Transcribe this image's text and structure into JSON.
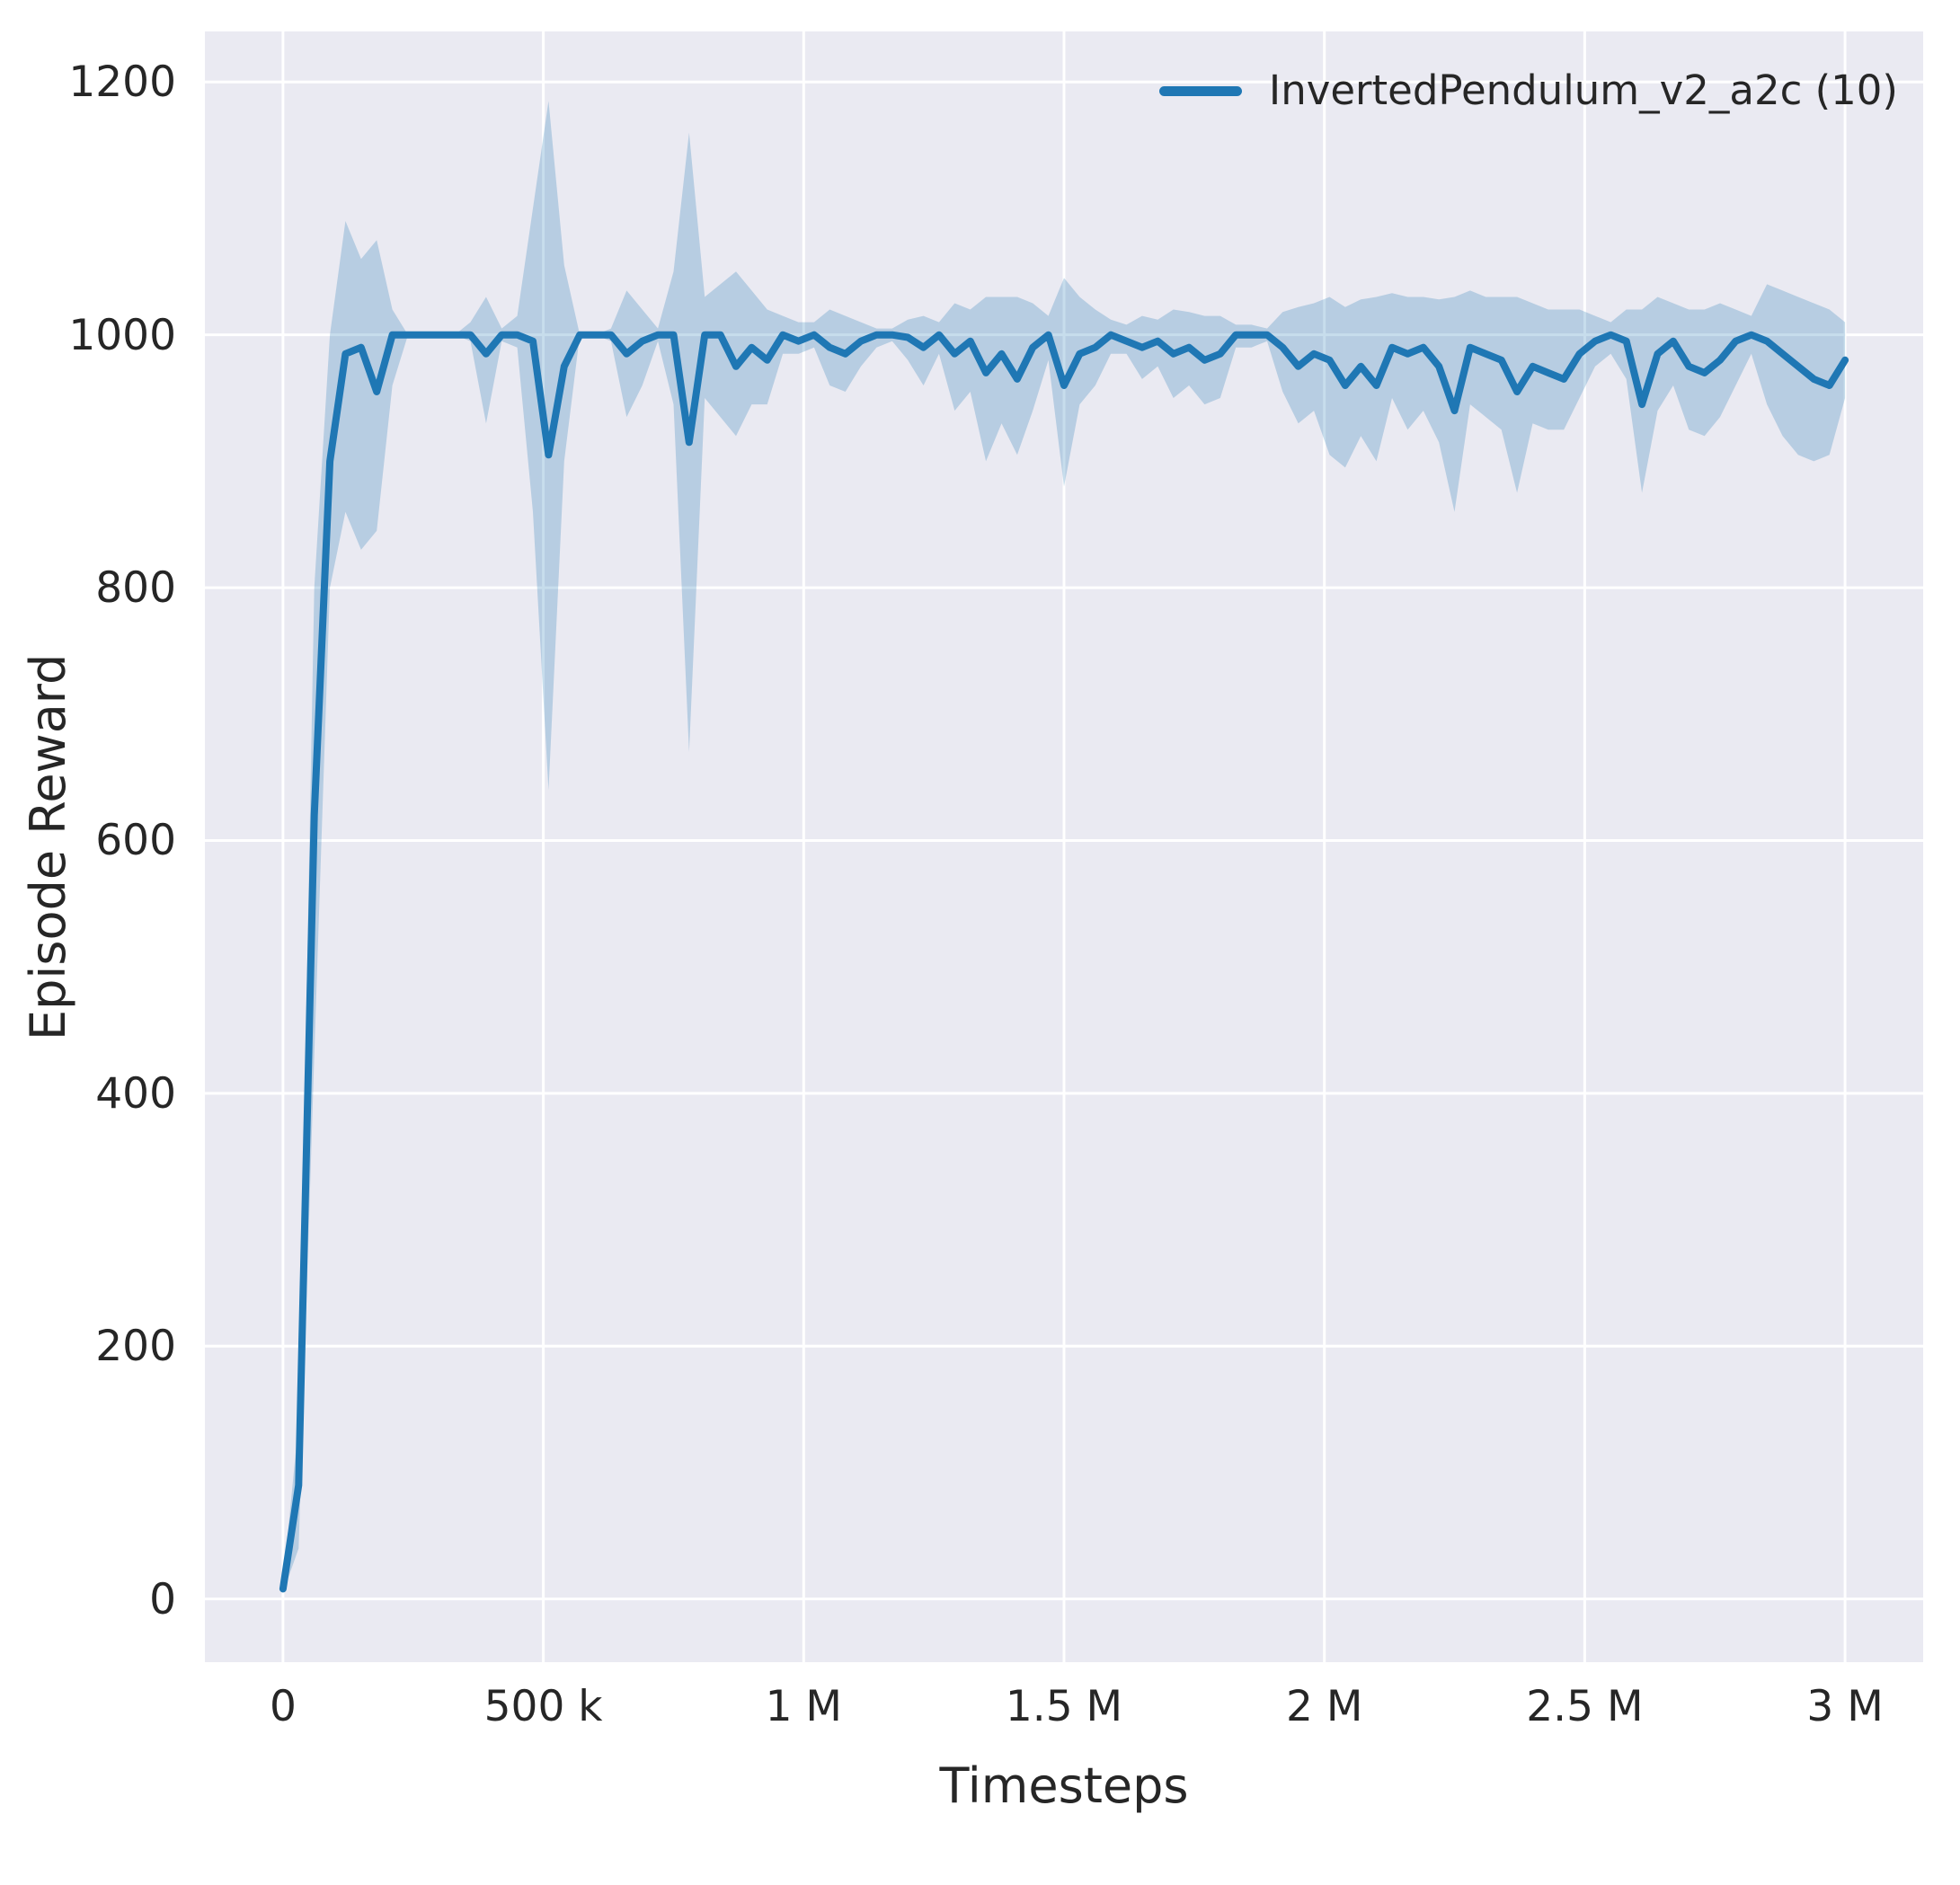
{
  "chart_data": {
    "type": "line",
    "title": "",
    "xlabel": "Timesteps",
    "ylabel": "Episode Reward",
    "grid": true,
    "legend_position": "upper right",
    "background": "#eaeaf2",
    "grid_color": "#ffffff",
    "xlim": [
      -150000,
      3150000
    ],
    "ylim": [
      -50,
      1240
    ],
    "x_ticks": {
      "values": [
        0,
        500000,
        1000000,
        1500000,
        2000000,
        2500000,
        3000000
      ],
      "labels": [
        "0",
        "500 k",
        "1 M",
        "1.5 M",
        "2 M",
        "2.5 M",
        "3 M"
      ]
    },
    "y_ticks": {
      "values": [
        0,
        200,
        400,
        600,
        800,
        1000,
        1200
      ],
      "labels": [
        "0",
        "200",
        "400",
        "600",
        "800",
        "1000",
        "1200"
      ]
    },
    "series": [
      {
        "name": "InvertedPendulum_v2_a2c (10)",
        "color": "#1f77b4",
        "band_opacity": 0.25,
        "x": [
          0,
          30000,
          60000,
          90000,
          120000,
          150000,
          180000,
          210000,
          240000,
          270000,
          300000,
          330000,
          360000,
          390000,
          420000,
          450000,
          480000,
          510000,
          540000,
          570000,
          600000,
          630000,
          660000,
          690000,
          720000,
          750000,
          780000,
          810000,
          840000,
          870000,
          900000,
          930000,
          960000,
          990000,
          1020000,
          1050000,
          1080000,
          1110000,
          1140000,
          1170000,
          1200000,
          1230000,
          1260000,
          1290000,
          1320000,
          1350000,
          1380000,
          1410000,
          1440000,
          1470000,
          1500000,
          1530000,
          1560000,
          1590000,
          1620000,
          1650000,
          1680000,
          1710000,
          1740000,
          1770000,
          1800000,
          1830000,
          1860000,
          1890000,
          1920000,
          1950000,
          1980000,
          2010000,
          2040000,
          2070000,
          2100000,
          2130000,
          2160000,
          2190000,
          2220000,
          2250000,
          2280000,
          2310000,
          2340000,
          2370000,
          2400000,
          2430000,
          2460000,
          2490000,
          2520000,
          2550000,
          2580000,
          2610000,
          2640000,
          2670000,
          2700000,
          2730000,
          2760000,
          2790000,
          2820000,
          2850000,
          2880000,
          2910000,
          2940000,
          2970000,
          3000000
        ],
        "y": [
          8,
          90,
          620,
          900,
          985,
          990,
          955,
          1000,
          1000,
          1000,
          1000,
          1000,
          1000,
          985,
          1000,
          1000,
          995,
          905,
          975,
          1000,
          1000,
          1000,
          985,
          995,
          1000,
          1000,
          915,
          1000,
          1000,
          975,
          990,
          980,
          1000,
          995,
          1000,
          990,
          985,
          995,
          1000,
          1000,
          998,
          990,
          1000,
          985,
          995,
          970,
          985,
          965,
          990,
          1000,
          960,
          985,
          990,
          1000,
          995,
          990,
          995,
          985,
          990,
          980,
          985,
          1000,
          1000,
          1000,
          990,
          975,
          985,
          980,
          960,
          975,
          960,
          990,
          985,
          990,
          975,
          940,
          990,
          985,
          980,
          955,
          975,
          970,
          965,
          985,
          995,
          1000,
          995,
          945,
          985,
          995,
          975,
          970,
          980,
          995,
          1000,
          995,
          985,
          975,
          965,
          960,
          980
        ],
        "band_low": [
          5,
          40,
          430,
          800,
          860,
          830,
          845,
          960,
          1000,
          1000,
          1000,
          1000,
          995,
          930,
          995,
          990,
          860,
          640,
          900,
          1000,
          1000,
          995,
          935,
          960,
          995,
          945,
          670,
          950,
          935,
          920,
          945,
          945,
          985,
          985,
          990,
          960,
          955,
          975,
          990,
          995,
          980,
          960,
          985,
          940,
          955,
          900,
          930,
          905,
          940,
          980,
          880,
          945,
          960,
          985,
          985,
          965,
          975,
          950,
          960,
          945,
          950,
          990,
          990,
          995,
          955,
          930,
          940,
          905,
          895,
          920,
          900,
          950,
          925,
          940,
          915,
          860,
          945,
          935,
          925,
          875,
          930,
          925,
          925,
          950,
          975,
          985,
          965,
          875,
          940,
          960,
          925,
          920,
          935,
          960,
          985,
          945,
          920,
          905,
          900,
          905,
          950
        ],
        "band_high": [
          12,
          140,
          800,
          1000,
          1090,
          1060,
          1075,
          1020,
          1000,
          1000,
          1000,
          1000,
          1010,
          1030,
          1005,
          1015,
          1100,
          1185,
          1055,
          1000,
          1000,
          1005,
          1035,
          1020,
          1005,
          1050,
          1160,
          1030,
          1040,
          1050,
          1035,
          1020,
          1015,
          1010,
          1010,
          1020,
          1015,
          1010,
          1005,
          1005,
          1012,
          1015,
          1010,
          1025,
          1020,
          1030,
          1030,
          1030,
          1025,
          1015,
          1045,
          1030,
          1020,
          1012,
          1008,
          1015,
          1012,
          1020,
          1018,
          1015,
          1015,
          1008,
          1008,
          1005,
          1018,
          1022,
          1025,
          1030,
          1022,
          1028,
          1030,
          1033,
          1030,
          1030,
          1028,
          1030,
          1035,
          1030,
          1030,
          1030,
          1025,
          1020,
          1020,
          1020,
          1015,
          1010,
          1020,
          1020,
          1030,
          1025,
          1020,
          1020,
          1025,
          1020,
          1015,
          1040,
          1035,
          1030,
          1025,
          1020,
          1010
        ]
      }
    ]
  }
}
